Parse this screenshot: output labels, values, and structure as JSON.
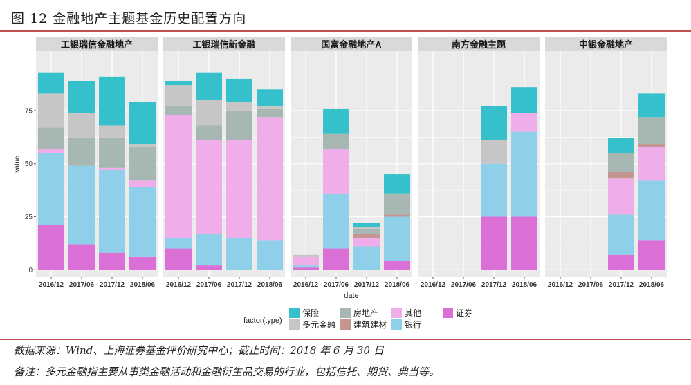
{
  "header": {
    "title": "图 12  金融地产主题基金历史配置方向"
  },
  "footer": {
    "source": "数据来源：Wind、上海证券基金评价研究中心；截止时间：2018 年 6 月 30 日",
    "note": "备注：多元金融指主要从事类金融活动和金融衍生品交易的行业，包括信托、期货、典当等。"
  },
  "colors": {
    "保险": "#36c0cc",
    "多元金融": "#c6c6c6",
    "房地产": "#a7b7b3",
    "建筑建材": "#c5958f",
    "其他": "#efaeea",
    "银行": "#8ed0ea",
    "证券": "#da70d6",
    "panel_bg": "#ebebeb",
    "strip_bg": "#d9d9d9",
    "grid": "#ffffff"
  },
  "chart_data": {
    "type": "bar",
    "stacked": true,
    "ylabel": "value",
    "xlabel": "date",
    "ylim": [
      0,
      100
    ],
    "yticks": [
      0,
      25,
      50,
      75
    ],
    "grid": true,
    "legend": {
      "title": "factor(type)",
      "position": "bottom"
    },
    "categories": [
      "2016/12",
      "2017/06",
      "2017/12",
      "2018/06"
    ],
    "series_order": [
      "保险",
      "多元金融",
      "房地产",
      "建筑建材",
      "其他",
      "银行",
      "证券"
    ],
    "legend_order": [
      "保险",
      "房地产",
      "其他",
      "证券",
      "多元金融",
      "建筑建材",
      "银行"
    ],
    "facets": [
      {
        "name": "工银瑞信金融地产",
        "series": [
          {
            "name": "证券",
            "values": [
              21,
              12,
              8,
              6
            ]
          },
          {
            "name": "银行",
            "values": [
              34,
              37,
              39,
              33
            ]
          },
          {
            "name": "其他",
            "values": [
              2,
              0,
              1,
              3
            ]
          },
          {
            "name": "建筑建材",
            "values": [
              0,
              0,
              0,
              0
            ]
          },
          {
            "name": "房地产",
            "values": [
              10,
              13,
              14,
              16
            ]
          },
          {
            "name": "多元金融",
            "values": [
              16,
              12,
              6,
              1
            ]
          },
          {
            "name": "保险",
            "values": [
              10,
              15,
              23,
              20
            ]
          }
        ]
      },
      {
        "name": "工银瑞信新金融",
        "series": [
          {
            "name": "证券",
            "values": [
              10,
              2,
              0,
              0
            ]
          },
          {
            "name": "银行",
            "values": [
              5,
              15,
              15,
              14
            ]
          },
          {
            "name": "其他",
            "values": [
              58,
              44,
              46,
              58
            ]
          },
          {
            "name": "建筑建材",
            "values": [
              0,
              0,
              0,
              0
            ]
          },
          {
            "name": "房地产",
            "values": [
              4,
              7,
              14,
              4
            ]
          },
          {
            "name": "多元金融",
            "values": [
              10,
              12,
              4,
              1
            ]
          },
          {
            "name": "保险",
            "values": [
              2,
              13,
              11,
              8
            ]
          }
        ]
      },
      {
        "name": "国富金融地产A",
        "series": [
          {
            "name": "证券",
            "values": [
              1,
              10,
              0,
              4
            ]
          },
          {
            "name": "银行",
            "values": [
              1,
              26,
              11,
              21
            ]
          },
          {
            "name": "其他",
            "values": [
              4,
              21,
              4,
              0
            ]
          },
          {
            "name": "建筑建材",
            "values": [
              0,
              0,
              2,
              1
            ]
          },
          {
            "name": "房地产",
            "values": [
              0,
              7,
              2,
              10
            ]
          },
          {
            "name": "多元金融",
            "values": [
              1,
              0,
              1,
              0
            ]
          },
          {
            "name": "保险",
            "values": [
              0,
              12,
              2,
              9
            ]
          }
        ]
      },
      {
        "name": "南方金融主题",
        "series": [
          {
            "name": "证券",
            "values": [
              0,
              0,
              25,
              25
            ]
          },
          {
            "name": "银行",
            "values": [
              0,
              0,
              25,
              40
            ]
          },
          {
            "name": "其他",
            "values": [
              0,
              0,
              0,
              9
            ]
          },
          {
            "name": "建筑建材",
            "values": [
              0,
              0,
              0,
              0
            ]
          },
          {
            "name": "房地产",
            "values": [
              0,
              0,
              0,
              0
            ]
          },
          {
            "name": "多元金融",
            "values": [
              0,
              0,
              11,
              0
            ]
          },
          {
            "name": "保险",
            "values": [
              0,
              0,
              16,
              12
            ]
          }
        ]
      },
      {
        "name": "中银金融地产",
        "series": [
          {
            "name": "证券",
            "values": [
              0,
              0,
              7,
              14
            ]
          },
          {
            "name": "银行",
            "values": [
              0,
              0,
              19,
              28
            ]
          },
          {
            "name": "其他",
            "values": [
              0,
              0,
              17,
              16
            ]
          },
          {
            "name": "建筑建材",
            "values": [
              0,
              0,
              3,
              1
            ]
          },
          {
            "name": "房地产",
            "values": [
              0,
              0,
              9,
              13
            ]
          },
          {
            "name": "多元金融",
            "values": [
              0,
              0,
              0,
              0
            ]
          },
          {
            "name": "保险",
            "values": [
              0,
              0,
              7,
              11
            ]
          }
        ]
      }
    ]
  }
}
